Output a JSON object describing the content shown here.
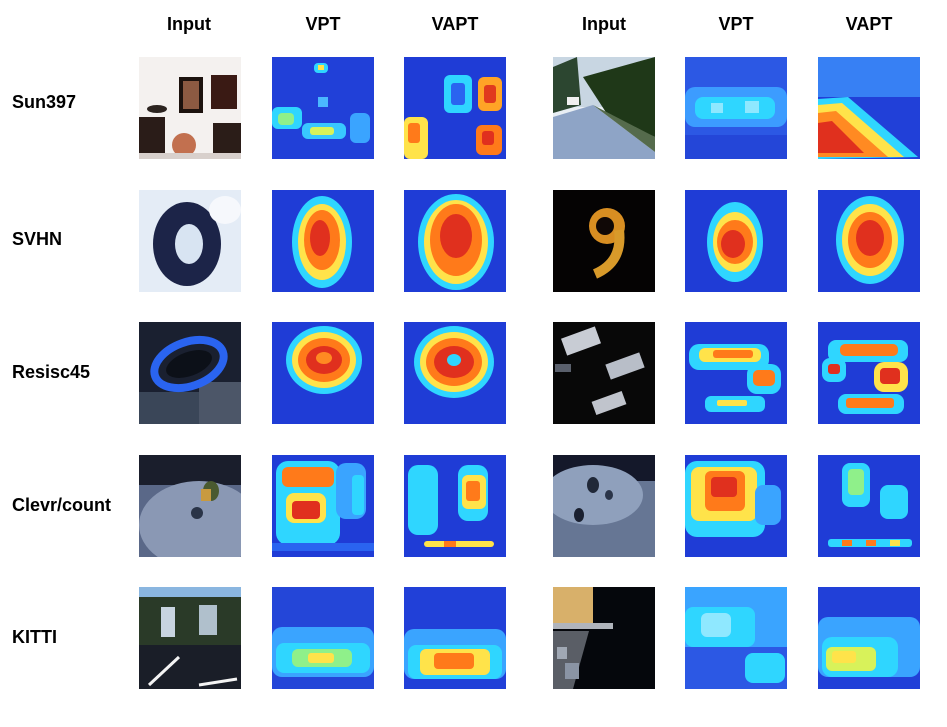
{
  "columns": [
    "Input",
    "VPT",
    "VAPT",
    "Input",
    "VPT",
    "VAPT"
  ],
  "rows": [
    "Sun397",
    "SVHN",
    "Resisc45",
    "Clevr/count",
    "KITTI"
  ],
  "colors": {
    "heat_background": "#1e3fd8",
    "heat_low": "#2f7bff",
    "heat_mid": "#2fd6ff",
    "heat_warm": "#ffe34a",
    "heat_hot": "#ff7a1a",
    "heat_core": "#e0301e"
  }
}
